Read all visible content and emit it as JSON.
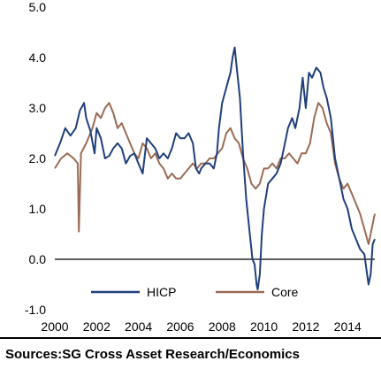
{
  "chart_data": {
    "type": "line",
    "x_ticks": [
      "2000",
      "2002",
      "2004",
      "2006",
      "2008",
      "2010",
      "2012",
      "2014"
    ],
    "y_ticks": [
      "5.0",
      "4.0",
      "3.0",
      "2.0",
      "1.0",
      "0.0",
      "-1.0"
    ],
    "xlim": [
      2000,
      2015.3
    ],
    "ylim": [
      -1.0,
      5.0
    ],
    "grid": false,
    "legend_position": "bottom-center",
    "series": [
      {
        "name": "HICP",
        "color": "#1f3f7a",
        "points": [
          [
            2000.0,
            2.05
          ],
          [
            2000.25,
            2.3
          ],
          [
            2000.5,
            2.6
          ],
          [
            2000.75,
            2.45
          ],
          [
            2001.0,
            2.6
          ],
          [
            2001.2,
            2.95
          ],
          [
            2001.4,
            3.1
          ],
          [
            2001.5,
            2.8
          ],
          [
            2001.7,
            2.55
          ],
          [
            2001.9,
            2.1
          ],
          [
            2002.0,
            2.6
          ],
          [
            2002.2,
            2.4
          ],
          [
            2002.4,
            2.0
          ],
          [
            2002.6,
            2.05
          ],
          [
            2002.8,
            2.2
          ],
          [
            2003.0,
            2.3
          ],
          [
            2003.2,
            2.2
          ],
          [
            2003.4,
            1.9
          ],
          [
            2003.6,
            2.05
          ],
          [
            2003.8,
            2.1
          ],
          [
            2004.0,
            1.9
          ],
          [
            2004.2,
            1.7
          ],
          [
            2004.4,
            2.4
          ],
          [
            2004.6,
            2.3
          ],
          [
            2004.8,
            2.2
          ],
          [
            2005.0,
            2.0
          ],
          [
            2005.2,
            2.1
          ],
          [
            2005.4,
            2.0
          ],
          [
            2005.6,
            2.2
          ],
          [
            2005.8,
            2.5
          ],
          [
            2006.0,
            2.4
          ],
          [
            2006.2,
            2.4
          ],
          [
            2006.4,
            2.5
          ],
          [
            2006.6,
            2.3
          ],
          [
            2006.75,
            1.8
          ],
          [
            2006.9,
            1.7
          ],
          [
            2007.0,
            1.8
          ],
          [
            2007.2,
            1.9
          ],
          [
            2007.4,
            1.9
          ],
          [
            2007.6,
            1.8
          ],
          [
            2007.75,
            2.1
          ],
          [
            2007.85,
            2.6
          ],
          [
            2008.0,
            3.1
          ],
          [
            2008.2,
            3.4
          ],
          [
            2008.4,
            3.7
          ],
          [
            2008.5,
            4.0
          ],
          [
            2008.6,
            4.2
          ],
          [
            2008.7,
            3.8
          ],
          [
            2008.85,
            3.2
          ],
          [
            2009.0,
            2.1
          ],
          [
            2009.15,
            1.2
          ],
          [
            2009.3,
            0.6
          ],
          [
            2009.45,
            0.0
          ],
          [
            2009.55,
            -0.1
          ],
          [
            2009.65,
            -0.5
          ],
          [
            2009.7,
            -0.6
          ],
          [
            2009.8,
            -0.3
          ],
          [
            2009.9,
            0.5
          ],
          [
            2010.0,
            1.0
          ],
          [
            2010.2,
            1.5
          ],
          [
            2010.4,
            1.6
          ],
          [
            2010.6,
            1.7
          ],
          [
            2010.8,
            1.9
          ],
          [
            2011.0,
            2.3
          ],
          [
            2011.15,
            2.6
          ],
          [
            2011.35,
            2.8
          ],
          [
            2011.5,
            2.6
          ],
          [
            2011.7,
            3.0
          ],
          [
            2011.85,
            3.6
          ],
          [
            2012.0,
            3.0
          ],
          [
            2012.15,
            3.7
          ],
          [
            2012.3,
            3.6
          ],
          [
            2012.5,
            3.8
          ],
          [
            2012.7,
            3.7
          ],
          [
            2012.85,
            3.4
          ],
          [
            2013.0,
            3.2
          ],
          [
            2013.2,
            2.8
          ],
          [
            2013.4,
            2.0
          ],
          [
            2013.6,
            1.6
          ],
          [
            2013.8,
            1.2
          ],
          [
            2014.0,
            1.0
          ],
          [
            2014.2,
            0.6
          ],
          [
            2014.4,
            0.4
          ],
          [
            2014.6,
            0.2
          ],
          [
            2014.8,
            0.1
          ],
          [
            2014.9,
            -0.2
          ],
          [
            2015.0,
            -0.5
          ],
          [
            2015.1,
            -0.3
          ],
          [
            2015.2,
            0.3
          ],
          [
            2015.3,
            0.4
          ]
        ]
      },
      {
        "name": "Core",
        "color": "#9b6b55",
        "points": [
          [
            2000.0,
            1.8
          ],
          [
            2000.3,
            2.0
          ],
          [
            2000.6,
            2.1
          ],
          [
            2000.9,
            2.0
          ],
          [
            2001.1,
            1.9
          ],
          [
            2001.15,
            0.55
          ],
          [
            2001.25,
            2.1
          ],
          [
            2001.5,
            2.3
          ],
          [
            2001.8,
            2.6
          ],
          [
            2002.0,
            2.9
          ],
          [
            2002.2,
            2.8
          ],
          [
            2002.4,
            3.0
          ],
          [
            2002.6,
            3.1
          ],
          [
            2002.8,
            2.9
          ],
          [
            2003.0,
            2.6
          ],
          [
            2003.2,
            2.7
          ],
          [
            2003.4,
            2.5
          ],
          [
            2003.6,
            2.3
          ],
          [
            2003.8,
            2.1
          ],
          [
            2004.0,
            2.0
          ],
          [
            2004.2,
            2.3
          ],
          [
            2004.4,
            2.2
          ],
          [
            2004.6,
            2.0
          ],
          [
            2004.8,
            2.1
          ],
          [
            2005.0,
            1.9
          ],
          [
            2005.2,
            1.8
          ],
          [
            2005.4,
            1.6
          ],
          [
            2005.6,
            1.7
          ],
          [
            2005.8,
            1.6
          ],
          [
            2006.0,
            1.6
          ],
          [
            2006.2,
            1.7
          ],
          [
            2006.4,
            1.8
          ],
          [
            2006.6,
            1.9
          ],
          [
            2006.8,
            1.8
          ],
          [
            2007.0,
            1.9
          ],
          [
            2007.2,
            1.9
          ],
          [
            2007.4,
            2.0
          ],
          [
            2007.6,
            2.0
          ],
          [
            2007.8,
            2.1
          ],
          [
            2008.0,
            2.2
          ],
          [
            2008.2,
            2.5
          ],
          [
            2008.4,
            2.6
          ],
          [
            2008.6,
            2.4
          ],
          [
            2008.8,
            2.3
          ],
          [
            2009.0,
            2.0
          ],
          [
            2009.2,
            1.8
          ],
          [
            2009.4,
            1.5
          ],
          [
            2009.6,
            1.4
          ],
          [
            2009.8,
            1.5
          ],
          [
            2010.0,
            1.8
          ],
          [
            2010.2,
            1.8
          ],
          [
            2010.4,
            1.9
          ],
          [
            2010.6,
            1.8
          ],
          [
            2010.8,
            2.0
          ],
          [
            2011.0,
            2.0
          ],
          [
            2011.2,
            2.1
          ],
          [
            2011.4,
            2.0
          ],
          [
            2011.6,
            1.9
          ],
          [
            2011.8,
            2.1
          ],
          [
            2012.0,
            2.1
          ],
          [
            2012.2,
            2.3
          ],
          [
            2012.4,
            2.8
          ],
          [
            2012.6,
            3.1
          ],
          [
            2012.8,
            3.0
          ],
          [
            2013.0,
            2.7
          ],
          [
            2013.2,
            2.5
          ],
          [
            2013.4,
            1.9
          ],
          [
            2013.6,
            1.6
          ],
          [
            2013.8,
            1.4
          ],
          [
            2014.0,
            1.5
          ],
          [
            2014.2,
            1.3
          ],
          [
            2014.4,
            1.1
          ],
          [
            2014.6,
            0.9
          ],
          [
            2014.8,
            0.6
          ],
          [
            2015.0,
            0.3
          ],
          [
            2015.1,
            0.5
          ],
          [
            2015.2,
            0.7
          ],
          [
            2015.3,
            0.9
          ]
        ]
      }
    ]
  },
  "source_note": "Sources:SG Cross Asset Research/Economics"
}
